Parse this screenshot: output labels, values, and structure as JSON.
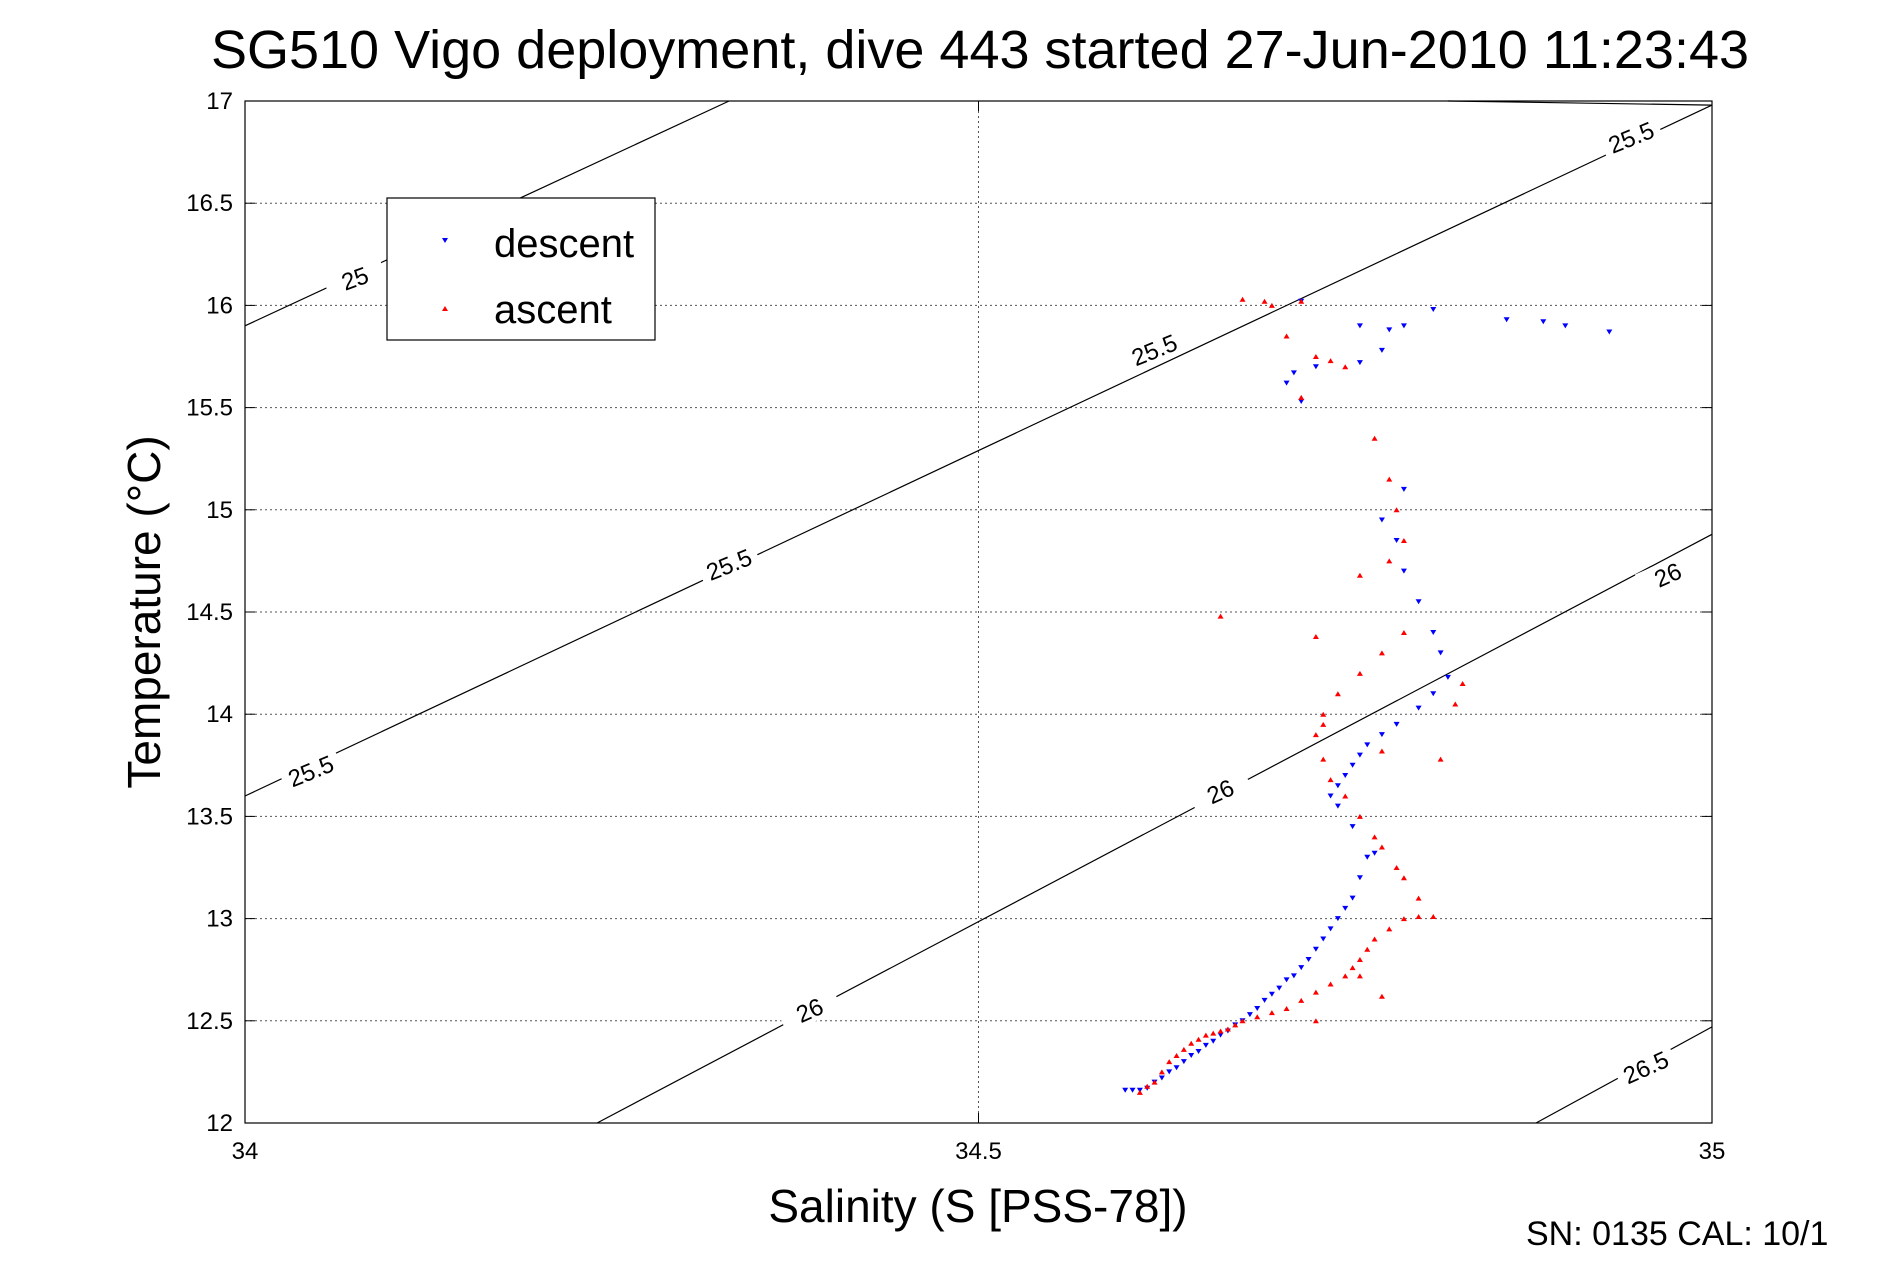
{
  "chart_data": {
    "type": "scatter",
    "title": "SG510 Vigo deployment, dive 443 started 27-Jun-2010 11:23:43",
    "xlabel": "Salinity (S [PSS-78])",
    "ylabel": "Temperature (°C)",
    "xlim": [
      34,
      35
    ],
    "ylim": [
      12,
      17
    ],
    "xticks": [
      34,
      34.5,
      35
    ],
    "xtick_labels": [
      "34",
      "34.5",
      "35"
    ],
    "yticks": [
      12,
      12.5,
      13,
      13.5,
      14,
      14.5,
      15,
      15.5,
      16,
      16.5,
      17
    ],
    "ytick_labels": [
      "12",
      "12.5",
      "13",
      "13.5",
      "14",
      "14.5",
      "15",
      "15.5",
      "16",
      "16.5",
      "17"
    ],
    "grid": true,
    "legend_position": "top-left",
    "footer_text": "SN: 0135  CAL: 10/1",
    "contours": [
      {
        "level": "25",
        "points": [
          [
            34.0,
            15.9
          ],
          [
            34.33,
            17.0
          ]
        ]
      },
      {
        "level": "25.5",
        "points": [
          [
            34.0,
            13.6
          ],
          [
            35.0,
            16.98
          ]
        ]
      },
      {
        "level": "25.5",
        "points": [
          [
            34.82,
            17.0
          ],
          [
            35.0,
            16.98
          ]
        ]
      },
      {
        "level": "26",
        "points": [
          [
            34.24,
            12.0
          ],
          [
            35.0,
            14.88
          ]
        ]
      },
      {
        "level": "26.5",
        "points": [
          [
            34.88,
            12.0
          ],
          [
            35.0,
            12.47
          ]
        ]
      }
    ],
    "contour_labels": [
      {
        "text": "25",
        "s": 34.075,
        "t": 16.13,
        "rot": -20
      },
      {
        "text": "25.5",
        "s": 34.045,
        "t": 13.72,
        "rot": -22
      },
      {
        "text": "25.5",
        "s": 34.33,
        "t": 14.73,
        "rot": -22
      },
      {
        "text": "25.5",
        "s": 34.62,
        "t": 15.78,
        "rot": -22
      },
      {
        "text": "25.5",
        "s": 34.945,
        "t": 16.82,
        "rot": -22
      },
      {
        "text": "26",
        "s": 34.385,
        "t": 12.55,
        "rot": -24
      },
      {
        "text": "26",
        "s": 34.665,
        "t": 13.62,
        "rot": -24
      },
      {
        "text": "26",
        "s": 34.97,
        "t": 14.68,
        "rot": -24
      },
      {
        "text": "26.5",
        "s": 34.955,
        "t": 12.27,
        "rot": -24
      }
    ],
    "series": [
      {
        "name": "descent",
        "color": "#0000ff",
        "marker": "triangle-down",
        "points": [
          [
            34.6,
            12.16
          ],
          [
            34.605,
            12.16
          ],
          [
            34.61,
            12.16
          ],
          [
            34.615,
            12.17
          ],
          [
            34.62,
            12.2
          ],
          [
            34.625,
            12.22
          ],
          [
            34.63,
            12.25
          ],
          [
            34.635,
            12.27
          ],
          [
            34.64,
            12.3
          ],
          [
            34.645,
            12.33
          ],
          [
            34.65,
            12.35
          ],
          [
            34.655,
            12.38
          ],
          [
            34.66,
            12.4
          ],
          [
            34.665,
            12.43
          ],
          [
            34.67,
            12.45
          ],
          [
            34.675,
            12.48
          ],
          [
            34.68,
            12.5
          ],
          [
            34.685,
            12.53
          ],
          [
            34.69,
            12.56
          ],
          [
            34.695,
            12.6
          ],
          [
            34.7,
            12.63
          ],
          [
            34.705,
            12.66
          ],
          [
            34.71,
            12.7
          ],
          [
            34.715,
            12.72
          ],
          [
            34.72,
            12.76
          ],
          [
            34.725,
            12.8
          ],
          [
            34.73,
            12.85
          ],
          [
            34.735,
            12.9
          ],
          [
            34.74,
            12.95
          ],
          [
            34.745,
            13.0
          ],
          [
            34.75,
            13.05
          ],
          [
            34.755,
            13.1
          ],
          [
            34.76,
            13.2
          ],
          [
            34.765,
            13.3
          ],
          [
            34.77,
            13.32
          ],
          [
            34.755,
            13.45
          ],
          [
            34.745,
            13.55
          ],
          [
            34.74,
            13.6
          ],
          [
            34.745,
            13.65
          ],
          [
            34.75,
            13.7
          ],
          [
            34.755,
            13.75
          ],
          [
            34.76,
            13.8
          ],
          [
            34.765,
            13.85
          ],
          [
            34.775,
            13.9
          ],
          [
            34.785,
            13.95
          ],
          [
            34.8,
            14.03
          ],
          [
            34.81,
            14.1
          ],
          [
            34.82,
            14.18
          ],
          [
            34.815,
            14.3
          ],
          [
            34.81,
            14.4
          ],
          [
            34.8,
            14.55
          ],
          [
            34.79,
            14.7
          ],
          [
            34.785,
            14.85
          ],
          [
            34.775,
            14.95
          ],
          [
            34.79,
            15.1
          ],
          [
            34.72,
            15.53
          ],
          [
            34.71,
            15.62
          ],
          [
            34.715,
            15.67
          ],
          [
            34.73,
            15.7
          ],
          [
            34.76,
            15.72
          ],
          [
            34.775,
            15.78
          ],
          [
            34.79,
            15.9
          ],
          [
            34.78,
            15.88
          ],
          [
            34.86,
            15.93
          ],
          [
            34.885,
            15.92
          ],
          [
            34.9,
            15.9
          ],
          [
            34.93,
            15.87
          ],
          [
            34.81,
            15.98
          ],
          [
            34.72,
            16.02
          ],
          [
            34.76,
            15.9
          ]
        ]
      },
      {
        "name": "ascent",
        "color": "#ff0000",
        "marker": "triangle-up",
        "points": [
          [
            34.61,
            12.15
          ],
          [
            34.615,
            12.18
          ],
          [
            34.62,
            12.2
          ],
          [
            34.625,
            12.25
          ],
          [
            34.63,
            12.3
          ],
          [
            34.635,
            12.33
          ],
          [
            34.64,
            12.36
          ],
          [
            34.645,
            12.39
          ],
          [
            34.65,
            12.41
          ],
          [
            34.655,
            12.43
          ],
          [
            34.66,
            12.44
          ],
          [
            34.665,
            12.45
          ],
          [
            34.67,
            12.46
          ],
          [
            34.675,
            12.48
          ],
          [
            34.68,
            12.5
          ],
          [
            34.69,
            12.52
          ],
          [
            34.7,
            12.54
          ],
          [
            34.71,
            12.56
          ],
          [
            34.72,
            12.6
          ],
          [
            34.73,
            12.64
          ],
          [
            34.74,
            12.68
          ],
          [
            34.75,
            12.72
          ],
          [
            34.755,
            12.76
          ],
          [
            34.76,
            12.8
          ],
          [
            34.765,
            12.85
          ],
          [
            34.77,
            12.9
          ],
          [
            34.78,
            12.95
          ],
          [
            34.79,
            13.0
          ],
          [
            34.8,
            13.01
          ],
          [
            34.81,
            13.01
          ],
          [
            34.8,
            13.1
          ],
          [
            34.79,
            13.2
          ],
          [
            34.785,
            13.25
          ],
          [
            34.775,
            13.35
          ],
          [
            34.77,
            13.4
          ],
          [
            34.76,
            13.5
          ],
          [
            34.75,
            13.6
          ],
          [
            34.74,
            13.68
          ],
          [
            34.735,
            13.78
          ],
          [
            34.73,
            13.9
          ],
          [
            34.735,
            14.0
          ],
          [
            34.745,
            14.1
          ],
          [
            34.76,
            14.2
          ],
          [
            34.775,
            14.3
          ],
          [
            34.79,
            14.4
          ],
          [
            34.665,
            14.48
          ],
          [
            34.73,
            14.38
          ],
          [
            34.76,
            14.68
          ],
          [
            34.78,
            14.75
          ],
          [
            34.79,
            14.85
          ],
          [
            34.785,
            15.0
          ],
          [
            34.78,
            15.15
          ],
          [
            34.77,
            15.35
          ],
          [
            34.72,
            15.55
          ],
          [
            34.73,
            15.75
          ],
          [
            34.74,
            15.73
          ],
          [
            34.75,
            15.7
          ],
          [
            34.71,
            15.85
          ],
          [
            34.7,
            16.0
          ],
          [
            34.72,
            16.02
          ],
          [
            34.695,
            16.02
          ],
          [
            34.68,
            16.03
          ],
          [
            34.73,
            12.5
          ],
          [
            34.775,
            12.62
          ],
          [
            34.76,
            12.72
          ],
          [
            34.83,
            14.15
          ],
          [
            34.825,
            14.05
          ],
          [
            34.815,
            13.78
          ],
          [
            34.775,
            13.82
          ],
          [
            34.735,
            13.95
          ]
        ]
      }
    ]
  }
}
